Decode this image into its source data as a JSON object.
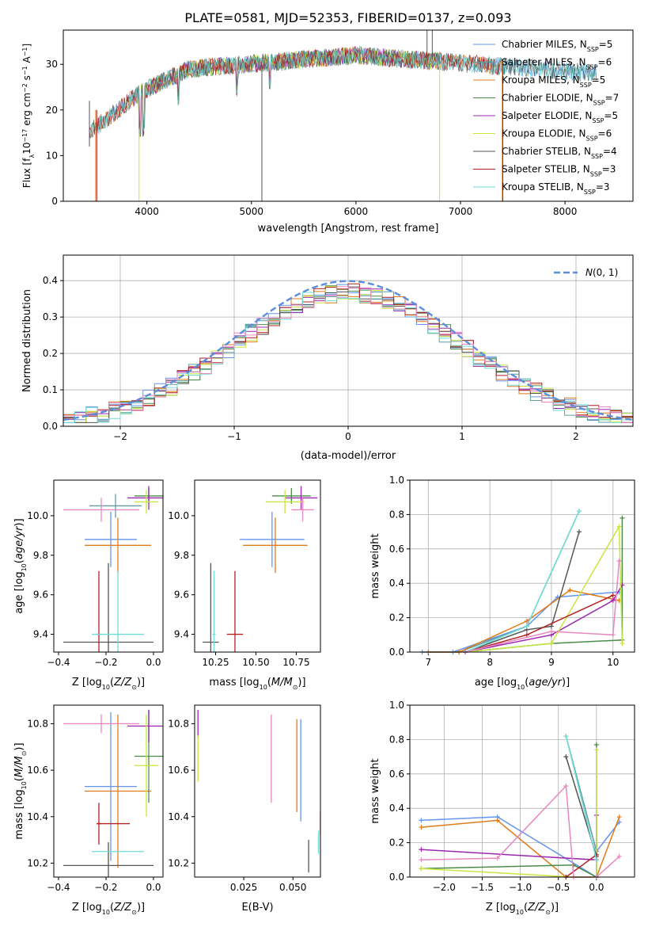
{
  "figure_title": "PLATE=0581, MJD=52353, FIBERID=0137, z=0.093",
  "colors": {
    "chabrier_miles": "#6495ed",
    "salpeter_miles": "#5f9ea0",
    "kroupa_miles": "#e07b1a",
    "chabrier_elodie": "#4a8c4a",
    "salpeter_elodie": "#9c27b0",
    "kroupa_elodie": "#c8e640",
    "chabrier_stelib": "#555555",
    "salpeter_stelib": "#b22222",
    "kroupa_stelib": "#6fdcd6",
    "normal_curve": "#5b8fdc",
    "pink": "#e887c0"
  },
  "chart_data": [
    {
      "id": "spectrum",
      "type": "line",
      "xlabel": "wavelength [Angstrom, rest frame]",
      "ylabel": "Flux [f_λ10^-17 erg cm^-2 s^-1 A^-1]",
      "xlim": [
        3200,
        8650
      ],
      "ylim": [
        0,
        37.5
      ],
      "xticks": [
        4000,
        5000,
        6000,
        7000,
        8000
      ],
      "yticks": [
        0,
        10,
        20,
        30
      ],
      "grid": false,
      "legend_position": "top-right",
      "series": [
        {
          "name": "Chabrier MILES, N_SSP=5",
          "key": "chabrier_miles",
          "x": [
            3540,
            8300
          ]
        },
        {
          "name": "Salpeter MILES, N_SSP=6",
          "key": "salpeter_miles",
          "x": [
            3540,
            8300
          ]
        },
        {
          "name": "Kroupa MILES, N_SSP=5",
          "key": "kroupa_miles",
          "x": [
            3540,
            7400
          ]
        },
        {
          "name": "Chabrier ELODIE, N_SSP=7",
          "key": "chabrier_elodie",
          "x": [
            3900,
            6800
          ]
        },
        {
          "name": "Salpeter ELODIE, N_SSP=5",
          "key": "salpeter_elodie",
          "x": [
            3900,
            6800
          ]
        },
        {
          "name": "Kroupa ELODIE, N_SSP=6",
          "key": "kroupa_elodie",
          "x": [
            3900,
            6800
          ]
        },
        {
          "name": "Chabrier STELIB, N_SSP=4",
          "key": "chabrier_stelib",
          "x": [
            3450,
            8300
          ]
        },
        {
          "name": "Salpeter STELIB, N_SSP=3",
          "key": "salpeter_stelib",
          "x": [
            3450,
            7400
          ]
        },
        {
          "name": "Kroupa STELIB, N_SSP=3",
          "key": "kroupa_stelib",
          "x": [
            3450,
            8300
          ]
        }
      ]
    },
    {
      "id": "residuals",
      "type": "line",
      "xlabel": "(data-model)/error",
      "ylabel": "Normed distribution",
      "xlim": [
        -2.5,
        2.5
      ],
      "ylim": [
        0,
        0.47
      ],
      "xticks": [
        -2,
        -1,
        0,
        1,
        2
      ],
      "yticks": [
        0.0,
        0.1,
        0.2,
        0.3,
        0.4
      ],
      "grid": true,
      "legend_position": "top-right",
      "legend": "N(0, 1)",
      "bin_width": 0.1,
      "curve": "gaussian mean 0 sigma 1"
    },
    {
      "id": "age-vs-Z",
      "type": "scatter",
      "xlabel": "Z [log10(Z/Z⊙)]",
      "ylabel": "age [log10(age/yr)]",
      "xlim": [
        -0.42,
        0.04
      ],
      "ylim": [
        9.31,
        10.18
      ],
      "xticks": [
        -0.4,
        -0.2,
        0.0
      ],
      "yticks": [
        9.4,
        9.6,
        9.8,
        10.0
      ],
      "points": [
        {
          "key": "chabrier_miles",
          "x": -0.18,
          "xerr": 0.11,
          "y": 9.88,
          "yerr": 0.14
        },
        {
          "key": "salpeter_miles",
          "x": -0.16,
          "xerr": 0.11,
          "y": 10.05,
          "yerr": 0.06
        },
        {
          "key": "kroupa_miles",
          "x": -0.15,
          "xerr": 0.14,
          "y": 9.85,
          "yerr": 0.14
        },
        {
          "key": "chabrier_elodie",
          "x": -0.02,
          "xerr": 0.06,
          "y": 10.1,
          "yerr": 0.04
        },
        {
          "key": "salpeter_elodie",
          "x": -0.02,
          "xerr": 0.09,
          "y": 10.09,
          "yerr": 0.06
        },
        {
          "key": "kroupa_elodie",
          "x": -0.03,
          "xerr": 0.05,
          "y": 10.07,
          "yerr": 0.06
        },
        {
          "key": "chabrier_stelib",
          "x": -0.19,
          "xerr": 0.19,
          "y": 9.36,
          "yerr": 0.4
        },
        {
          "key": "salpeter_stelib",
          "x": -0.23,
          "xerr": 0.01,
          "y": 9.4,
          "yerr": 0.32
        },
        {
          "key": "kroupa_stelib",
          "x": -0.15,
          "xerr": 0.11,
          "y": 9.4,
          "yerr": 0.32
        },
        {
          "key": "pink",
          "x": -0.22,
          "xerr": 0.16,
          "y": 10.03,
          "yerr": 0.06
        }
      ]
    },
    {
      "id": "age-vs-mass",
      "type": "scatter",
      "xlabel": "mass [log10(M/M⊙)]",
      "ylabel": "",
      "xlim": [
        10.12,
        10.9
      ],
      "ylim": [
        9.31,
        10.18
      ],
      "xticks": [
        10.25,
        10.5,
        10.75
      ],
      "yticks": [
        9.4,
        9.6,
        9.8,
        10.0
      ],
      "points": [
        {
          "key": "chabrier_miles",
          "x": 10.6,
          "xerr": 0.2,
          "y": 9.88,
          "yerr": 0.14
        },
        {
          "key": "kroupa_miles",
          "x": 10.62,
          "xerr": 0.2,
          "y": 9.85,
          "yerr": 0.14
        },
        {
          "key": "chabrier_elodie",
          "x": 10.72,
          "xerr": 0.12,
          "y": 10.1,
          "yerr": 0.04
        },
        {
          "key": "salpeter_elodie",
          "x": 10.78,
          "xerr": 0.1,
          "y": 10.09,
          "yerr": 0.06
        },
        {
          "key": "kroupa_elodie",
          "x": 10.68,
          "xerr": 0.12,
          "y": 10.07,
          "yerr": 0.06
        },
        {
          "key": "chabrier_stelib",
          "x": 10.22,
          "xerr": 0.05,
          "y": 9.36,
          "yerr": 0.4
        },
        {
          "key": "salpeter_stelib",
          "x": 10.37,
          "xerr": 0.05,
          "y": 9.4,
          "yerr": 0.32
        },
        {
          "key": "kroupa_stelib",
          "x": 10.24,
          "xerr": 0.01,
          "y": 9.4,
          "yerr": 0.32
        },
        {
          "key": "pink",
          "x": 10.79,
          "xerr": 0.07,
          "y": 10.03,
          "yerr": 0.06
        }
      ]
    },
    {
      "id": "weight-vs-age",
      "type": "line",
      "xlabel": "age [log10(age/yr)]",
      "ylabel": "mass weight",
      "xlim": [
        6.7,
        10.35
      ],
      "ylim": [
        0,
        1
      ],
      "xticks": [
        7,
        8,
        9,
        10
      ],
      "yticks": [
        0.0,
        0.2,
        0.4,
        0.6,
        0.8,
        1.0
      ],
      "grid": true,
      "series": [
        {
          "key": "chabrier_miles",
          "x": [
            6.9,
            7.4,
            8.6,
            9.1,
            10.1
          ],
          "y": [
            0.0,
            0.0,
            0.15,
            0.32,
            0.35
          ]
        },
        {
          "key": "salpeter_miles",
          "x": [
            7.0,
            7.5,
            8.6,
            9.45
          ],
          "y": [
            0.0,
            0.0,
            0.15,
            0.82
          ]
        },
        {
          "key": "kroupa_miles",
          "x": [
            7.0,
            7.5,
            8.6,
            9.3,
            10.1
          ],
          "y": [
            0.0,
            0.0,
            0.18,
            0.36,
            0.3
          ]
        },
        {
          "key": "chabrier_elodie",
          "x": [
            7.6,
            9.0,
            10.15,
            10.15
          ],
          "y": [
            0.0,
            0.05,
            0.07,
            0.78
          ]
        },
        {
          "key": "salpeter_elodie",
          "x": [
            7.6,
            9.0,
            10.0,
            10.15
          ],
          "y": [
            0.0,
            0.1,
            0.3,
            0.39
          ]
        },
        {
          "key": "kroupa_elodie",
          "x": [
            7.6,
            9.0,
            10.1,
            10.15
          ],
          "y": [
            0.0,
            0.05,
            0.73,
            0.05
          ]
        },
        {
          "key": "chabrier_stelib",
          "x": [
            7.6,
            8.6,
            9.0,
            9.45
          ],
          "y": [
            0.0,
            0.13,
            0.15,
            0.7
          ]
        },
        {
          "key": "salpeter_stelib",
          "x": [
            7.6,
            8.6,
            10.0
          ],
          "y": [
            0.0,
            0.1,
            0.33
          ]
        },
        {
          "key": "kroupa_stelib",
          "x": [
            7.6,
            8.6,
            9.45
          ],
          "y": [
            0.0,
            0.15,
            0.82
          ]
        },
        {
          "key": "pink",
          "x": [
            7.6,
            9.0,
            10.0,
            10.1
          ],
          "y": [
            0.0,
            0.12,
            0.1,
            0.53
          ]
        }
      ]
    },
    {
      "id": "mass-vs-Z",
      "type": "scatter",
      "xlabel": "Z [log10(Z/Z⊙)]",
      "ylabel": "mass [log10(M/M⊙)]",
      "xlim": [
        -0.42,
        0.04
      ],
      "ylim": [
        10.14,
        10.88
      ],
      "xticks": [
        -0.4,
        -0.2,
        0.0
      ],
      "yticks": [
        10.2,
        10.4,
        10.6,
        10.8
      ],
      "points": [
        {
          "key": "chabrier_miles",
          "x": -0.18,
          "xerr": 0.11,
          "y": 10.53,
          "yerr": 0.32
        },
        {
          "key": "kroupa_miles",
          "x": -0.15,
          "xerr": 0.14,
          "y": 10.51,
          "yerr": 0.33
        },
        {
          "key": "chabrier_elodie",
          "x": -0.02,
          "xerr": 0.06,
          "y": 10.66,
          "yerr": 0.2
        },
        {
          "key": "salpeter_elodie",
          "x": -0.02,
          "xerr": 0.09,
          "y": 10.79,
          "yerr": 0.07
        },
        {
          "key": "kroupa_elodie",
          "x": -0.03,
          "xerr": 0.05,
          "y": 10.62,
          "yerr": 0.22
        },
        {
          "key": "chabrier_stelib",
          "x": -0.19,
          "xerr": 0.19,
          "y": 10.19,
          "yerr": 0.1
        },
        {
          "key": "salpeter_stelib",
          "x": -0.23,
          "xerr": 0.01,
          "y": 10.37,
          "yerr": 0.09
        },
        {
          "key": "salpeter_stelib_b",
          "x": -0.17,
          "xerr": 0.07,
          "y": 10.37,
          "yerr": 0.0
        },
        {
          "key": "kroupa_stelib",
          "x": -0.15,
          "xerr": 0.11,
          "y": 10.25,
          "yerr": 0.0
        },
        {
          "key": "pink",
          "x": -0.22,
          "xerr": 0.16,
          "y": 10.8,
          "yerr": 0.04
        }
      ]
    },
    {
      "id": "mass-vs-EBV",
      "type": "scatter",
      "xlabel": "E(B-V)",
      "ylabel": "",
      "xlim": [
        0.0,
        0.064
      ],
      "ylim": [
        10.14,
        10.88
      ],
      "xticks": [
        0.025,
        0.05
      ],
      "yticks": [
        10.2,
        10.4,
        10.6,
        10.8
      ],
      "points": [
        {
          "key": "chabrier_miles",
          "x": 0.054,
          "y": 10.6,
          "yerr": 0.22
        },
        {
          "key": "kroupa_miles",
          "x": 0.052,
          "y": 10.62,
          "yerr": 0.2
        },
        {
          "key": "salpeter_elodie",
          "x": 0.0017,
          "y": 10.8,
          "yerr": 0.06
        },
        {
          "key": "kroupa_elodie",
          "x": 0.0017,
          "y": 10.65,
          "yerr": 0.1
        },
        {
          "key": "chabrier_stelib",
          "x": 0.058,
          "y": 10.23,
          "yerr": 0.07
        },
        {
          "key": "salpeter_stelib",
          "x": 0.064,
          "y": 10.37,
          "yerr": 0.05
        },
        {
          "key": "kroupa_stelib",
          "x": 0.063,
          "y": 10.29,
          "yerr": 0.05
        },
        {
          "key": "pink",
          "x": 0.039,
          "y": 10.65,
          "yerr": 0.19
        }
      ]
    },
    {
      "id": "weight-vs-Z",
      "type": "line",
      "xlabel": "Z [log10(Z/Z⊙)]",
      "ylabel": "mass weight",
      "xlim": [
        -2.45,
        0.5
      ],
      "ylim": [
        0,
        1
      ],
      "xticks": [
        -2.0,
        -1.5,
        -1.0,
        -0.5,
        0.0
      ],
      "yticks": [
        0.0,
        0.2,
        0.4,
        0.6,
        0.8,
        1.0
      ],
      "grid": true,
      "series": [
        {
          "key": "chabrier_miles",
          "x": [
            -2.3,
            -1.3,
            0.0,
            0.0,
            0.3
          ],
          "y": [
            0.33,
            0.35,
            0.0,
            0.15,
            0.32
          ]
        },
        {
          "key": "salpeter_miles",
          "x": [
            -0.4,
            0.0
          ],
          "y": [
            0.82,
            0.15
          ]
        },
        {
          "key": "kroupa_miles",
          "x": [
            -2.3,
            -1.3,
            -0.4,
            0.0,
            0.3
          ],
          "y": [
            0.29,
            0.33,
            0.0,
            0.0,
            0.35
          ]
        },
        {
          "key": "chabrier_elodie",
          "x": [
            -2.3,
            -0.3,
            0.0,
            0.0
          ],
          "y": [
            0.05,
            0.07,
            0.0,
            0.77
          ]
        },
        {
          "key": "salpeter_elodie",
          "x": [
            -2.3,
            0.0,
            0.0
          ],
          "y": [
            0.16,
            0.1,
            0.36
          ]
        },
        {
          "key": "kroupa_elodie",
          "x": [
            -2.3,
            -0.3,
            0.0,
            0.0
          ],
          "y": [
            0.05,
            0.0,
            0.0,
            0.74
          ]
        },
        {
          "key": "chabrier_stelib",
          "x": [
            -0.4,
            0.0
          ],
          "y": [
            0.7,
            0.12
          ]
        },
        {
          "key": "salpeter_stelib",
          "x": [
            -0.4,
            0.0
          ],
          "y": [
            0.0,
            0.13
          ]
        },
        {
          "key": "kroupa_stelib",
          "x": [
            -0.4,
            0.0
          ],
          "y": [
            0.82,
            0.1
          ]
        },
        {
          "key": "pink",
          "x": [
            -2.3,
            -1.3,
            -0.4,
            -0.3,
            0.0,
            0.3
          ],
          "y": [
            0.1,
            0.11,
            0.53,
            0.0,
            0.0,
            0.12
          ]
        }
      ]
    }
  ]
}
